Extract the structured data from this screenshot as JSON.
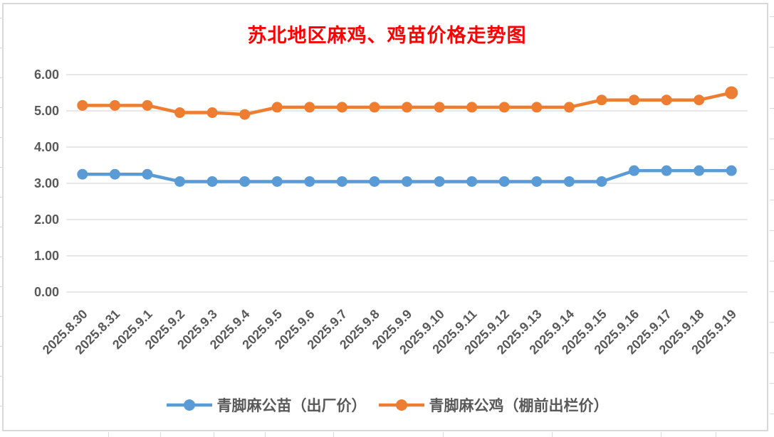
{
  "chart_data": {
    "type": "line",
    "title": "苏北地区麻鸡、鸡苗价格走势图",
    "categories": [
      "2025.8.30",
      "2025.8.31",
      "2025.9.1",
      "2025.9.2",
      "2025.9.3",
      "2025.9.4",
      "2025.9.5",
      "2025.9.6",
      "2025.9.7",
      "2025.9.8",
      "2025.9.9",
      "2025.9.10",
      "2025.9.11",
      "2025.9.12",
      "2025.9.13",
      "2025.9.14",
      "2025.9.15",
      "2025.9.16",
      "2025.9.17",
      "2025.9.18",
      "2025.9.19"
    ],
    "series": [
      {
        "name": "青脚麻公苗（出厂价）",
        "color": "#5B9BD5",
        "values": [
          3.25,
          3.25,
          3.25,
          3.05,
          3.05,
          3.05,
          3.05,
          3.05,
          3.05,
          3.05,
          3.05,
          3.05,
          3.05,
          3.05,
          3.05,
          3.05,
          3.05,
          3.35,
          3.35,
          3.35,
          3.35
        ]
      },
      {
        "name": "青脚麻公鸡（棚前出栏价）",
        "color": "#ED7D31",
        "values": [
          5.15,
          5.15,
          5.15,
          4.95,
          4.95,
          4.9,
          5.1,
          5.1,
          5.1,
          5.1,
          5.1,
          5.1,
          5.1,
          5.1,
          5.1,
          5.1,
          5.3,
          5.3,
          5.3,
          5.3,
          5.5
        ]
      }
    ],
    "ylim": [
      0,
      6
    ],
    "ytick_step": 1,
    "ytick_labels": [
      "0.00",
      "1.00",
      "2.00",
      "3.00",
      "4.00",
      "5.00",
      "6.00"
    ],
    "grid": true,
    "legend_position": "bottom",
    "colors": {
      "title": "#FF0000",
      "axis_text": "#595959",
      "legend_text": "#595959",
      "gridline": "#D9D9D9",
      "frame": "#D9D9D9"
    }
  }
}
